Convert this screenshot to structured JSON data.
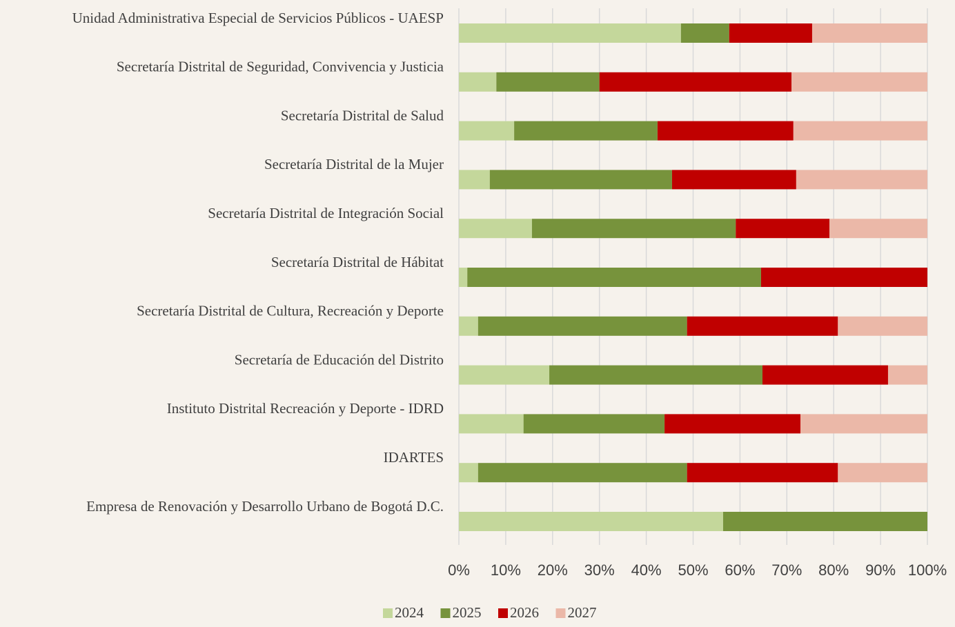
{
  "chart_data": {
    "type": "stacked-barh",
    "categories": [
      "Unidad Administrativa Especial de Servicios Públicos - UAESP",
      "Secretaría Distrital de Seguridad, Convivencia y Justicia",
      "Secretaría Distrital de Salud",
      "Secretaría Distrital de la Mujer",
      "Secretaría Distrital de Integración Social",
      "Secretaría Distrital de Hábitat",
      "Secretaría Distrital de Cultura, Recreación y Deporte",
      "Secretaría de Educación del Distrito",
      "Instituto Distrital Recreación y Deporte - IDRD",
      "IDARTES",
      "Empresa de Renovación y Desarrollo Urbano de Bogotá D.C."
    ],
    "series": [
      {
        "name": "2024",
        "color": "#c4d79b",
        "values": [
          47.4,
          8.0,
          11.8,
          6.6,
          15.6,
          1.8,
          4.1,
          19.3,
          13.8,
          4.1,
          56.4
        ]
      },
      {
        "name": "2025",
        "color": "#77933c",
        "values": [
          10.3,
          22.0,
          30.6,
          38.9,
          43.5,
          62.7,
          44.6,
          45.5,
          30.1,
          44.6,
          43.6
        ]
      },
      {
        "name": "2026",
        "color": "#c00000",
        "values": [
          17.7,
          41.0,
          29.0,
          26.5,
          20.0,
          35.5,
          32.2,
          26.8,
          29.0,
          32.2,
          0
        ]
      },
      {
        "name": "2027",
        "color": "#ebb8a8",
        "values": [
          24.6,
          29.0,
          28.6,
          28.0,
          20.9,
          0,
          19.1,
          8.4,
          27.1,
          19.1,
          0
        ]
      }
    ],
    "xlim": [
      0,
      100
    ],
    "xticks": [
      {
        "value": 0,
        "label": "0%"
      },
      {
        "value": 10,
        "label": "10%"
      },
      {
        "value": 20,
        "label": "20%"
      },
      {
        "value": 30,
        "label": "30%"
      },
      {
        "value": 40,
        "label": "40%"
      },
      {
        "value": 50,
        "label": "50%"
      },
      {
        "value": 60,
        "label": "60%"
      },
      {
        "value": 70,
        "label": "70%"
      },
      {
        "value": 80,
        "label": "80%"
      },
      {
        "value": 90,
        "label": "90%"
      },
      {
        "value": 100,
        "label": "100%"
      }
    ],
    "grid": true,
    "legend": "bottom"
  }
}
